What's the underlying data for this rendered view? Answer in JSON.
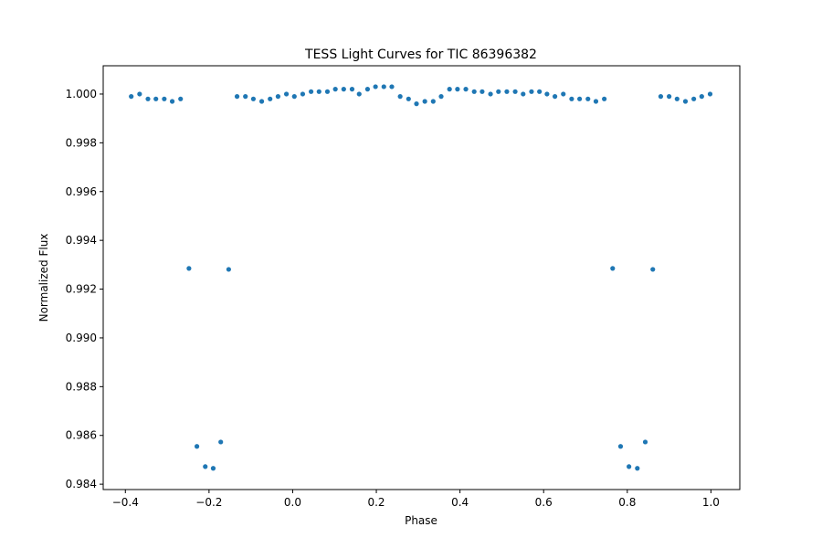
{
  "chart_data": {
    "type": "scatter",
    "title": "TESS Light Curves for TIC 86396382",
    "xlabel": "Phase",
    "ylabel": "Normalized Flux",
    "series": [
      {
        "color": "#1f77b4",
        "x": [
          -0.386,
          -0.366,
          -0.346,
          -0.327,
          -0.307,
          -0.288,
          -0.268,
          -0.248,
          -0.229,
          -0.209,
          -0.19,
          -0.172,
          -0.153,
          -0.133,
          -0.113,
          -0.094,
          -0.074,
          -0.054,
          -0.035,
          -0.015,
          0.004,
          0.024,
          0.044,
          0.063,
          0.083,
          0.102,
          0.122,
          0.142,
          0.159,
          0.179,
          0.198,
          0.218,
          0.237,
          0.257,
          0.277,
          0.296,
          0.316,
          0.336,
          0.355,
          0.375,
          0.394,
          0.414,
          0.434,
          0.453,
          0.473,
          0.492,
          0.512,
          0.532,
          0.551,
          0.571,
          0.59,
          0.608,
          0.627,
          0.647,
          0.667,
          0.686,
          0.706,
          0.725,
          0.745,
          0.765,
          0.784,
          0.804,
          0.824,
          0.843,
          0.861,
          0.88,
          0.9,
          0.919,
          0.939,
          0.959,
          0.978,
          0.998
        ],
        "values": [
          0.9999,
          1.0,
          0.9998,
          0.9998,
          0.9998,
          0.9997,
          0.9998,
          0.99285,
          0.98555,
          0.98472,
          0.98465,
          0.98573,
          0.99281,
          0.9999,
          0.9999,
          0.9998,
          0.9997,
          0.9998,
          0.9999,
          1.0,
          0.9999,
          1.0,
          1.0001,
          1.0001,
          1.0001,
          1.0002,
          1.0002,
          1.0002,
          1.0,
          1.0002,
          1.0003,
          1.0003,
          1.0003,
          0.9999,
          0.9998,
          0.9996,
          0.9997,
          0.9997,
          0.9999,
          1.0002,
          1.0002,
          1.0002,
          1.0001,
          1.0001,
          1.0,
          1.0001,
          1.0001,
          1.0001,
          1.0,
          1.0001,
          1.0001,
          1.0,
          0.9999,
          1.0,
          0.9998,
          0.9998,
          0.9998,
          0.9997,
          0.9998,
          0.99285,
          0.98555,
          0.98472,
          0.98465,
          0.98573,
          0.99281,
          0.9999,
          0.9999,
          0.9998,
          0.9997,
          0.9998,
          0.9999,
          1.0
        ]
      }
    ],
    "xlim": [
      -0.453,
      1.069
    ],
    "xticks": [
      {
        "value": -0.4,
        "label": "−0.4"
      },
      {
        "value": -0.2,
        "label": "−0.2"
      },
      {
        "value": 0.0,
        "label": "0.0"
      },
      {
        "value": 0.2,
        "label": "0.2"
      },
      {
        "value": 0.4,
        "label": "0.4"
      },
      {
        "value": 0.6,
        "label": "0.6"
      },
      {
        "value": 0.8,
        "label": "0.8"
      },
      {
        "value": 1.0,
        "label": "1.0"
      }
    ],
    "ylim": [
      0.98378,
      1.00116
    ],
    "yticks": [
      {
        "value": 0.984,
        "label": "0.984"
      },
      {
        "value": 0.986,
        "label": "0.986"
      },
      {
        "value": 0.988,
        "label": "0.988"
      },
      {
        "value": 0.99,
        "label": "0.990"
      },
      {
        "value": 0.992,
        "label": "0.992"
      },
      {
        "value": 0.994,
        "label": "0.994"
      },
      {
        "value": 0.996,
        "label": "0.996"
      },
      {
        "value": 0.998,
        "label": "0.998"
      },
      {
        "value": 1.0,
        "label": "1.000"
      }
    ]
  }
}
